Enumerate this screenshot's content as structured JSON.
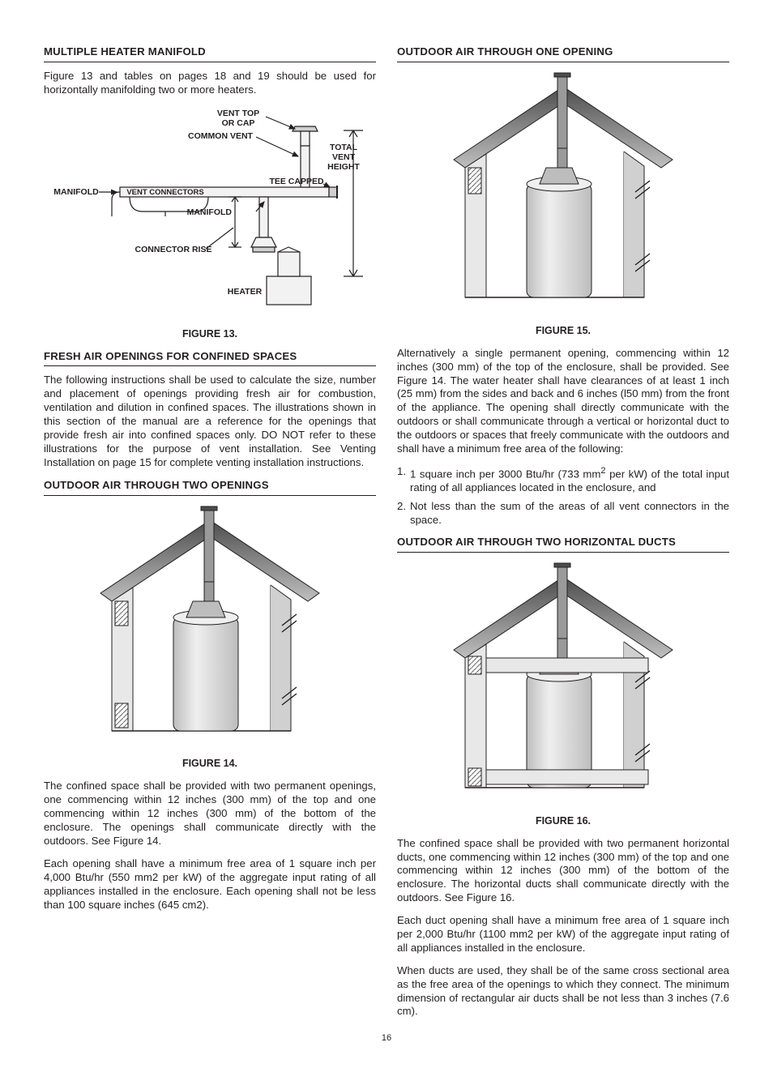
{
  "page_number": "16",
  "left": {
    "h1": "MULTIPLE HEATER MANIFOLD",
    "p1": "Figure 13 and tables on pages 18 and 19 should be used for horizontally manifolding two or more heaters.",
    "fig13": {
      "caption": "FIGURE 13.",
      "labels": {
        "vent_top": "VENT TOP",
        "or_cap": "OR CAP",
        "common_vent": "COMMON VENT",
        "total": "TOTAL",
        "vent": "VENT",
        "height": "HEIGHT",
        "manifold_left": "MANIFOLD",
        "vent_connectors": "VENT CONNECTORS",
        "tee_capped": "TEE CAPPED",
        "manifold_under": "MANIFOLD",
        "connector_rise": "CONNECTOR RISE",
        "heater": "HEATER"
      },
      "colors": {
        "stroke": "#231f20",
        "fill_light": "#f2f2f2",
        "fill_med": "#cfcfcf"
      }
    },
    "h2": "FRESH AIR OPENINGS FOR CONFINED SPACES",
    "p2": "The following instructions shall be used to calculate the size, number and placement of openings providing fresh air for combustion, ventilation and dilution in confined spaces. The illustrations shown in this section of the manual are a reference for the openings that provide fresh air into confined spaces only. DO NOT refer to these illustrations for the purpose of vent installation. See Venting Installation on page 15 for complete venting installation instructions.",
    "h3": "OUTDOOR AIR THROUGH TWO OPENINGS",
    "fig14": {
      "caption": "FIGURE 14."
    },
    "p3": "The confined space shall be provided with two permanent openings, one commencing within 12 inches (300 mm) of the top and one commencing within 12 inches (300 mm) of the bottom of the enclosure. The openings shall communicate directly with the outdoors. See Figure 14.",
    "p4": "Each opening shall have a minimum free area of 1 square inch per 4,000 Btu/hr (550 mm2 per kW) of the aggregate input rating of all appliances installed in the enclosure. Each opening shall not be less than 100 square inches (645 cm2)."
  },
  "right": {
    "h1": "OUTDOOR AIR THROUGH ONE OPENING",
    "fig15": {
      "caption": "FIGURE 15."
    },
    "p1": "Alternatively a single permanent opening, commencing within 12 inches (300 mm) of the top of the enclosure, shall be provided. See Figure 14. The water heater shall have clearances of at least 1 inch (25 mm) from the sides and back and 6 inches (l50 mm) from the front of the appliance. The opening shall directly communicate with the outdoors or shall communicate through a vertical or horizontal duct to the outdoors or spaces that freely communicate with the outdoors and shall have a minimum free area of the following:",
    "li1a": "1 square inch per 3000 Btu/hr (733 mm",
    "li1b": " per kW) of the total input rating of all appliances located in the enclosure, and",
    "li2": "Not less than the sum of the areas of all vent connectors in the space.",
    "h2": "OUTDOOR AIR THROUGH TWO HORIZONTAL DUCTS",
    "fig16": {
      "caption": "FIGURE 16."
    },
    "p2": "The confined space shall be provided with two permanent horizontal ducts, one commencing within 12 inches (300 mm) of the top and one commencing within 12 inches (300 mm) of the bottom of the enclosure. The horizontal ducts shall communicate directly with the outdoors. See Figure 16.",
    "p3": "Each duct opening shall have a minimum free area of 1 square inch per 2,000 Btu/hr (1100 mm2 per kW) of the aggregate input rating of all appliances installed in the enclosure.",
    "p4": "When ducts are used, they shall be of the same cross sectional area as the free area of the openings to which they connect. The minimum dimension of rectangular air ducts shall be not less than 3 inches (7.6 cm)."
  },
  "house_colors": {
    "roof_dark": "#4d4d4d",
    "roof_mid": "#7a7a7a",
    "roof_light": "#bfbfbf",
    "wall_l": "#e8e8e8",
    "wall_r": "#d0d0d0",
    "tank": "#bdbdbd",
    "tank_shine": "#efefef",
    "pipe": "#9a9a9a",
    "stroke": "#231f20",
    "hatch": "#666"
  }
}
